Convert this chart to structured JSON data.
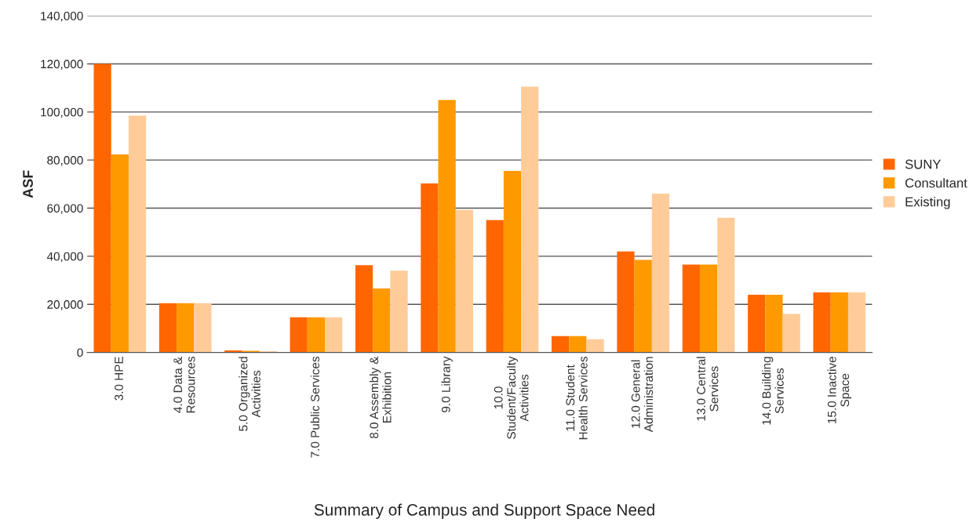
{
  "chart_data": {
    "type": "bar",
    "title": "Summary of Campus and Support Space Need",
    "ylabel": "ASF",
    "categories": [
      "3.0 HPE",
      "4.0 Data &\nResources",
      "5.0 Organized\nActivities",
      "7.0 Public Services",
      "8.0 Assembly &\nExhibition",
      "9.0 Library",
      "10.0\nStudent/Faculty\nActivities",
      "11.0 Student\nHealth Services",
      "12.0 General\nAdministration",
      "13.0 Central\nServices",
      "14.0 Building\nServices",
      "15.0 Inactive\nSpace"
    ],
    "series": [
      {
        "name": "SUNY",
        "color": "#ff6600",
        "values": [
          120000,
          20500,
          800,
          14600,
          36300,
          70300,
          55000,
          6800,
          42000,
          36500,
          24000,
          25000
        ]
      },
      {
        "name": "Consultant",
        "color": "#ff9900",
        "values": [
          82300,
          20500,
          700,
          14600,
          26600,
          105000,
          75500,
          6800,
          38500,
          36500,
          24000,
          25000
        ]
      },
      {
        "name": "Existing",
        "color": "#ffcc99",
        "values": [
          98500,
          20500,
          500,
          14600,
          34000,
          59300,
          110500,
          5500,
          66000,
          56000,
          16000,
          25000
        ]
      }
    ],
    "ylim": [
      0,
      140000
    ],
    "yticks": [
      {
        "value": 0,
        "label": "0"
      },
      {
        "value": 20000,
        "label": "20,000"
      },
      {
        "value": 40000,
        "label": "40,000"
      },
      {
        "value": 60000,
        "label": "60,000"
      },
      {
        "value": 80000,
        "label": "80,000"
      },
      {
        "value": 100000,
        "label": "100,000"
      },
      {
        "value": 120000,
        "label": "120,000"
      },
      {
        "value": 140000,
        "label": "140,000"
      }
    ],
    "grid": "y",
    "legend": "right"
  }
}
